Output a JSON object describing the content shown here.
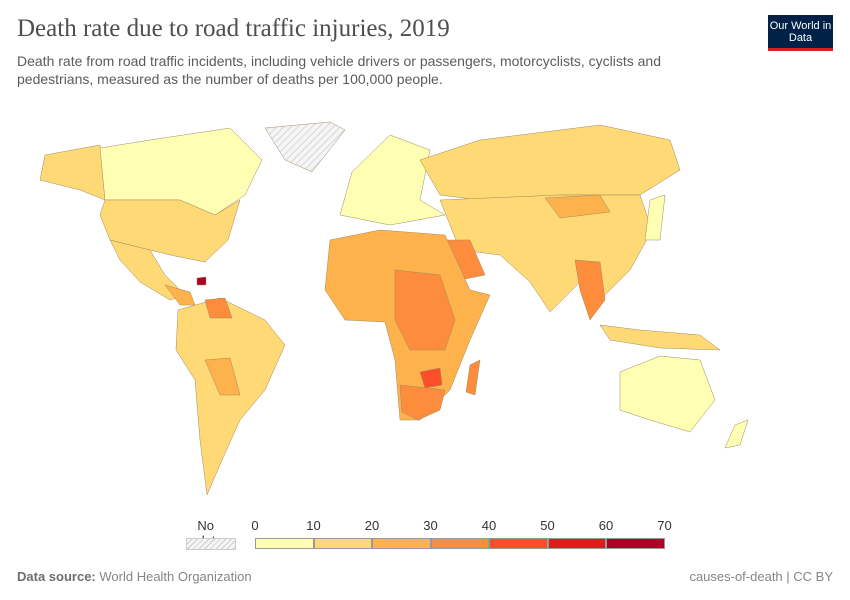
{
  "header": {
    "title": "Death rate due to road traffic injuries, 2019",
    "subtitle": "Death rate from road traffic incidents, including vehicle drivers or passengers, motorcyclists, cyclists and pedestrians, measured as the number of deaths per 100,000 people.",
    "logo": "Our World in Data"
  },
  "legend": {
    "no_data": "No data",
    "ticks": [
      "0",
      "10",
      "20",
      "30",
      "40",
      "50",
      "60",
      "70"
    ],
    "colors": [
      "#ffffb3",
      "#fed976",
      "#feb24c",
      "#fd8d3c",
      "#fc4e2a",
      "#e31a1c",
      "#b10026"
    ]
  },
  "footer": {
    "source_label": "Data source:",
    "source": "World Health Organization",
    "right": "causes-of-death | CC BY"
  }
}
